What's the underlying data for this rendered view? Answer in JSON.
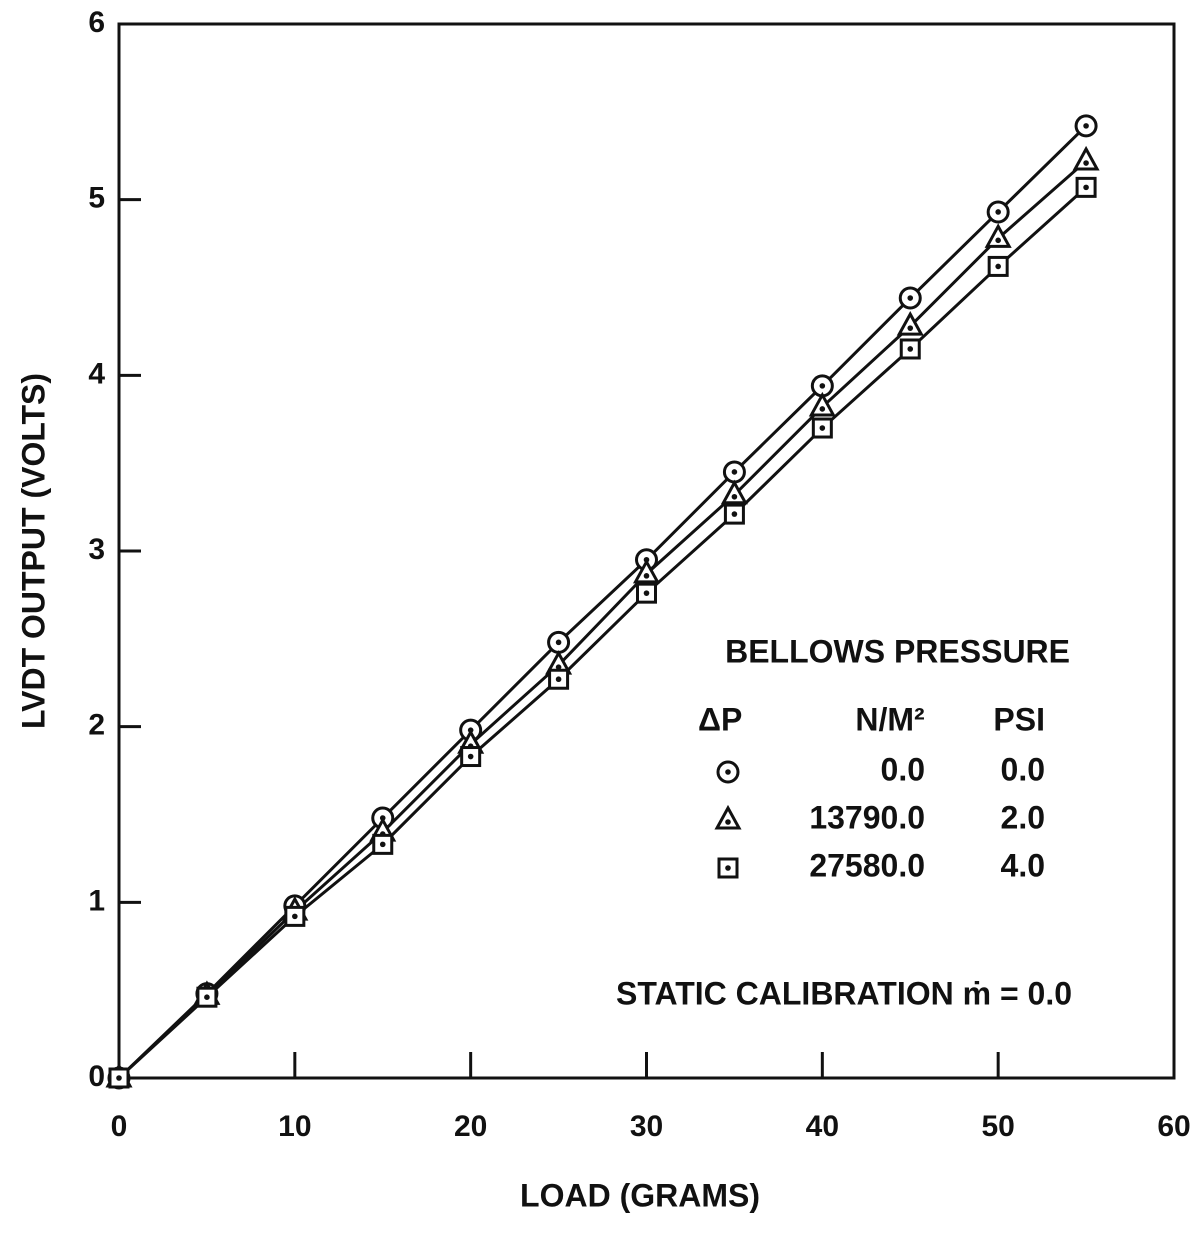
{
  "chart_data": {
    "type": "line",
    "x_label": "LOAD (GRAMS)",
    "y_label": "LVDT OUTPUT (VOLTS)",
    "x": [
      0,
      5,
      10,
      15,
      20,
      25,
      30,
      35,
      40,
      45,
      50,
      55
    ],
    "xlim": [
      0,
      60
    ],
    "xticks": [
      0,
      10,
      20,
      30,
      40,
      50,
      60
    ],
    "ylim": [
      0,
      6
    ],
    "yticks": [
      0,
      1,
      2,
      3,
      4,
      5,
      6
    ],
    "legend_title": "BELLOWS PRESSURE",
    "legend_headers": [
      "ΔP",
      "N/M²",
      "PSI"
    ],
    "annotation": "STATIC CALIBRATION ṁ = 0.0",
    "series": [
      {
        "name": "0.0",
        "psi": "0.0",
        "marker": "circle",
        "color": "#111111",
        "values": [
          0,
          0.48,
          0.98,
          1.48,
          1.98,
          2.48,
          2.95,
          3.45,
          3.94,
          4.44,
          4.93,
          5.42
        ]
      },
      {
        "name": "13790.0",
        "psi": "2.0",
        "marker": "triangle",
        "color": "#111111",
        "values": [
          0,
          0.47,
          0.95,
          1.4,
          1.9,
          2.35,
          2.87,
          3.32,
          3.82,
          4.28,
          4.78,
          5.22
        ]
      },
      {
        "name": "27580.0",
        "psi": "4.0",
        "marker": "square",
        "color": "#111111",
        "values": [
          0,
          0.46,
          0.92,
          1.33,
          1.83,
          2.27,
          2.76,
          3.21,
          3.7,
          4.15,
          4.62,
          5.07
        ]
      }
    ]
  }
}
